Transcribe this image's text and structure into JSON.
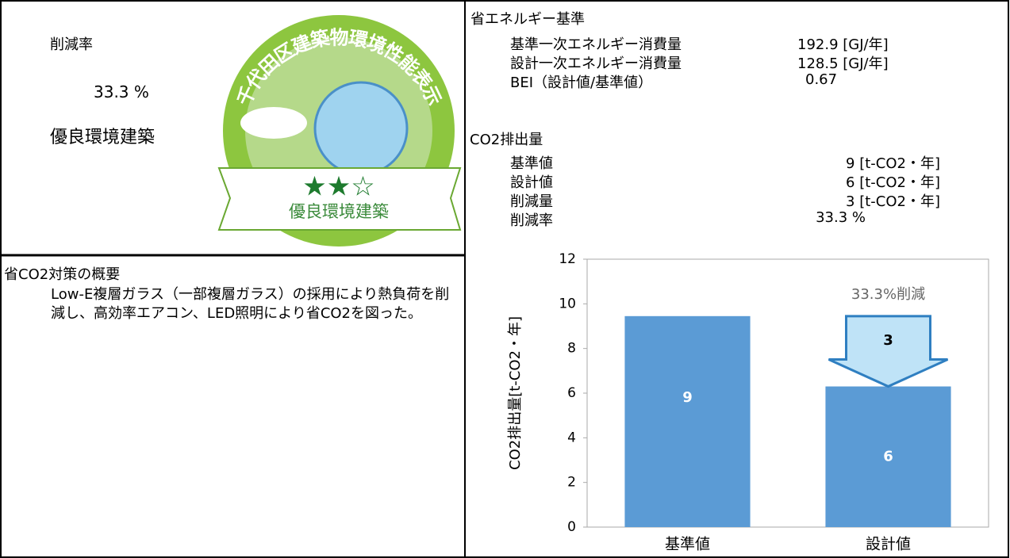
{
  "left": {
    "reduction_label": "削減率",
    "reduction_value": "33.3 %",
    "rating": "優良環境建築"
  },
  "badge": {
    "arc_text": "千代田区建築物環境性能表示",
    "stars": "★★☆",
    "label": "優良環境建築"
  },
  "energy": {
    "title": "省エネルギー基準",
    "rows": [
      [
        "基準一次エネルギー消費量",
        "192.9 [GJ/年]"
      ],
      [
        "設計一次エネルギー消費量",
        "128.5 [GJ/年]"
      ],
      [
        "BEI（設計値/基準値）",
        "0.67"
      ]
    ]
  },
  "co2": {
    "title": "CO2排出量",
    "rows": [
      [
        "基準値",
        "9 [t-CO2・年]"
      ],
      [
        "設計値",
        "6 [t-CO2・年]"
      ],
      [
        "削減量",
        "3 [t-CO2・年]"
      ],
      [
        "削減率",
        "33.3 %"
      ]
    ]
  },
  "measures": {
    "title": "省CO2対策の概要",
    "text": "Low-E複層ガラス（一部複層ガラス）の採用により熱負荷を削減し、高効率エアコン、LED照明により省CO2を図った。"
  },
  "chart_data": {
    "type": "bar",
    "y_label": "CO2排出量[t-CO2・年]",
    "categories": [
      "基準値",
      "設計値"
    ],
    "values": [
      9.45,
      6.3
    ],
    "value_labels": [
      "9",
      "6"
    ],
    "color": "#5b9bd5",
    "ylim": [
      0,
      12
    ],
    "yticks": [
      0,
      2,
      4,
      6,
      8,
      10,
      12
    ],
    "annotation": "33.3%削減",
    "arrow_label": "3"
  }
}
